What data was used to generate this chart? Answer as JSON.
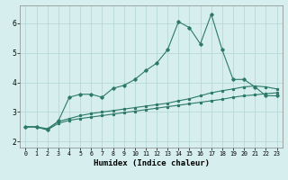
{
  "xlabel": "Humidex (Indice chaleur)",
  "ylabel": "",
  "background_color": "#d6eeee",
  "grid_color": "#b8d8d8",
  "line_color": "#2d7a6a",
  "x_values": [
    0,
    1,
    2,
    3,
    4,
    5,
    6,
    7,
    8,
    9,
    10,
    11,
    12,
    13,
    14,
    15,
    16,
    17,
    18,
    19,
    20,
    21,
    22,
    23
  ],
  "series1": [
    2.5,
    2.5,
    2.4,
    2.7,
    3.5,
    3.6,
    3.6,
    3.5,
    3.8,
    3.9,
    4.1,
    4.4,
    4.65,
    5.1,
    6.05,
    5.85,
    5.3,
    6.3,
    5.1,
    4.1,
    4.1,
    3.85,
    3.55,
    3.55
  ],
  "series2": [
    2.5,
    2.5,
    2.4,
    2.62,
    2.72,
    2.78,
    2.83,
    2.88,
    2.93,
    2.98,
    3.03,
    3.08,
    3.13,
    3.18,
    3.23,
    3.28,
    3.33,
    3.38,
    3.43,
    3.5,
    3.55,
    3.58,
    3.62,
    3.65
  ],
  "series3": [
    2.5,
    2.5,
    2.44,
    2.68,
    2.78,
    2.88,
    2.95,
    3.0,
    3.05,
    3.1,
    3.15,
    3.2,
    3.25,
    3.3,
    3.38,
    3.45,
    3.55,
    3.65,
    3.72,
    3.78,
    3.85,
    3.88,
    3.85,
    3.78
  ],
  "ylim": [
    1.8,
    6.6
  ],
  "xlim": [
    -0.5,
    23.5
  ],
  "yticks": [
    2,
    3,
    4,
    5,
    6
  ],
  "xticks": [
    0,
    1,
    2,
    3,
    4,
    5,
    6,
    7,
    8,
    9,
    10,
    11,
    12,
    13,
    14,
    15,
    16,
    17,
    18,
    19,
    20,
    21,
    22,
    23
  ],
  "figsize": [
    3.2,
    2.0
  ],
  "dpi": 100
}
